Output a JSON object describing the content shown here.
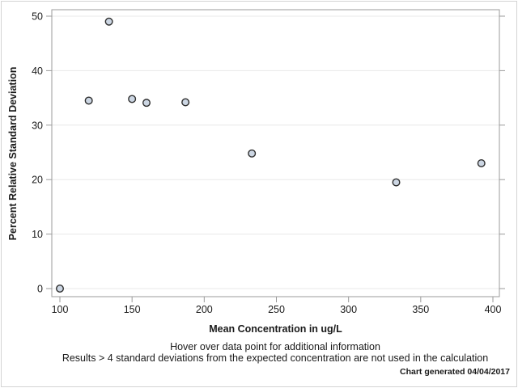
{
  "chart_data": {
    "type": "scatter",
    "title": "",
    "xlabel": "Mean Concentration in ug/L",
    "ylabel": "Percent Relative Standard Deviation",
    "xlim": [
      100,
      400
    ],
    "ylim": [
      0,
      50
    ],
    "xticks": [
      100,
      150,
      200,
      250,
      300,
      350,
      400
    ],
    "yticks": [
      0,
      10,
      20,
      30,
      40,
      50
    ],
    "grid": "horizontal",
    "legend": "none",
    "points": [
      {
        "x": 100,
        "y": 0
      },
      {
        "x": 120,
        "y": 34.5
      },
      {
        "x": 134,
        "y": 49
      },
      {
        "x": 150,
        "y": 34.8
      },
      {
        "x": 160,
        "y": 34.1
      },
      {
        "x": 187,
        "y": 34.2
      },
      {
        "x": 233,
        "y": 24.8
      },
      {
        "x": 333,
        "y": 19.5
      },
      {
        "x": 392,
        "y": 23
      }
    ],
    "marker": {
      "shape": "circle",
      "fill": "#ccd6e3",
      "stroke": "#2d2d2d"
    }
  },
  "footnotes": {
    "line1": "Hover over data point for additional information",
    "line2": "Results > 4 standard deviations from the expected concentration are not used in the calculation",
    "generated": "Chart generated 04/04/2017"
  },
  "colors": {
    "background": "#ffffff",
    "outer_border": "#d4d4d4",
    "frame": "#9b9b9b",
    "grid": "#e8e8e8",
    "tick": "#9b9b9b",
    "text": "#1a1a1a"
  }
}
